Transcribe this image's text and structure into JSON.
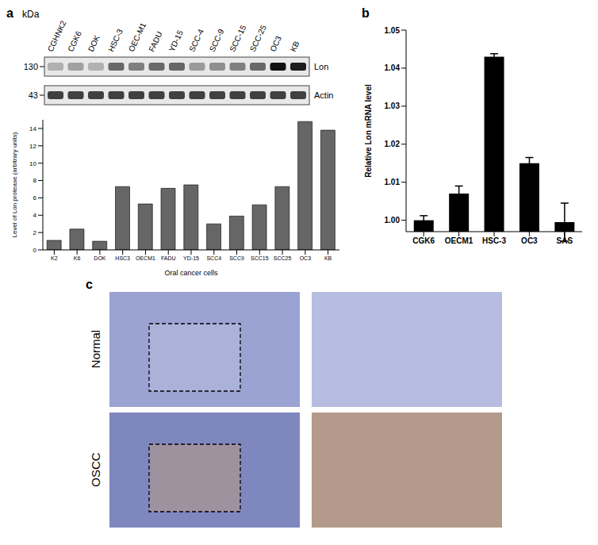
{
  "panel_labels": [
    "a",
    "b",
    "c"
  ],
  "blot": {
    "unit": "kDa",
    "markers": [
      130,
      43
    ],
    "lanes": [
      "CGHNK2",
      "CGK6",
      "DOK",
      "HSC-3",
      "OEC-M1",
      "FADU",
      "YD-15",
      "SCC-4",
      "SCC-9",
      "SCC-15",
      "SCC-25",
      "OC3",
      "KB"
    ],
    "bands": [
      "Lon",
      "Actin"
    ]
  },
  "chart_data": [
    {
      "type": "bar",
      "categories": [
        "K2",
        "K6",
        "DOK",
        "HSC3",
        "OECM1",
        "FADU",
        "YD-15",
        "SCC4",
        "SCC9",
        "SCC15",
        "SCC25",
        "OC3",
        "KB"
      ],
      "values": [
        1.1,
        2.4,
        1.0,
        7.3,
        5.3,
        7.1,
        7.5,
        3.0,
        3.9,
        5.2,
        7.3,
        14.8,
        13.8
      ],
      "color": "#666666",
      "x_label": "Oral cancer cells",
      "y_label": "Level of Lon protease (arbitrary units)",
      "ylim": [
        0,
        15
      ],
      "yticks": [
        0,
        2,
        4,
        6,
        8,
        10,
        12,
        14
      ],
      "grid": false
    },
    {
      "type": "bar",
      "categories": [
        "CGK6",
        "OECM1",
        "HSC-3",
        "OC3",
        "SAS"
      ],
      "values": [
        1.0,
        1.007,
        1.043,
        1.015,
        0.9995
      ],
      "errors": [
        0.0012,
        0.002,
        0.0008,
        0.0015,
        0.005
      ],
      "color": "#000000",
      "y_label": "Relative Lon mRNA level",
      "ylim": [
        0.997,
        1.05
      ],
      "yticks": [
        {
          "value": 1.0,
          "label": "1.00"
        },
        {
          "value": 1.01,
          "label": "1.01"
        },
        {
          "value": 1.02,
          "label": "1.02"
        },
        {
          "value": 1.03,
          "label": "1.03"
        },
        {
          "value": 1.04,
          "label": "1.04"
        },
        {
          "value": 1.05,
          "label": "1.05"
        }
      ],
      "grid": false
    }
  ],
  "histology": {
    "rows": [
      "Normal",
      "OSCC"
    ]
  }
}
